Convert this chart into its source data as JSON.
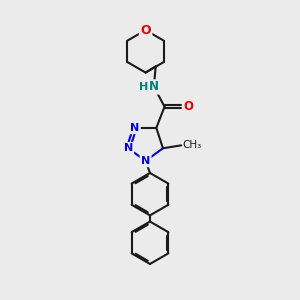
{
  "background_color": "#ebebeb",
  "bond_color": "#1a1a1a",
  "nitrogen_color": "#0000ee",
  "oxygen_color": "#ee0000",
  "nh_color": "#008080",
  "figsize": [
    3.0,
    3.0
  ],
  "dpi": 100,
  "xlim": [
    0,
    10
  ],
  "ylim": [
    0,
    10
  ]
}
